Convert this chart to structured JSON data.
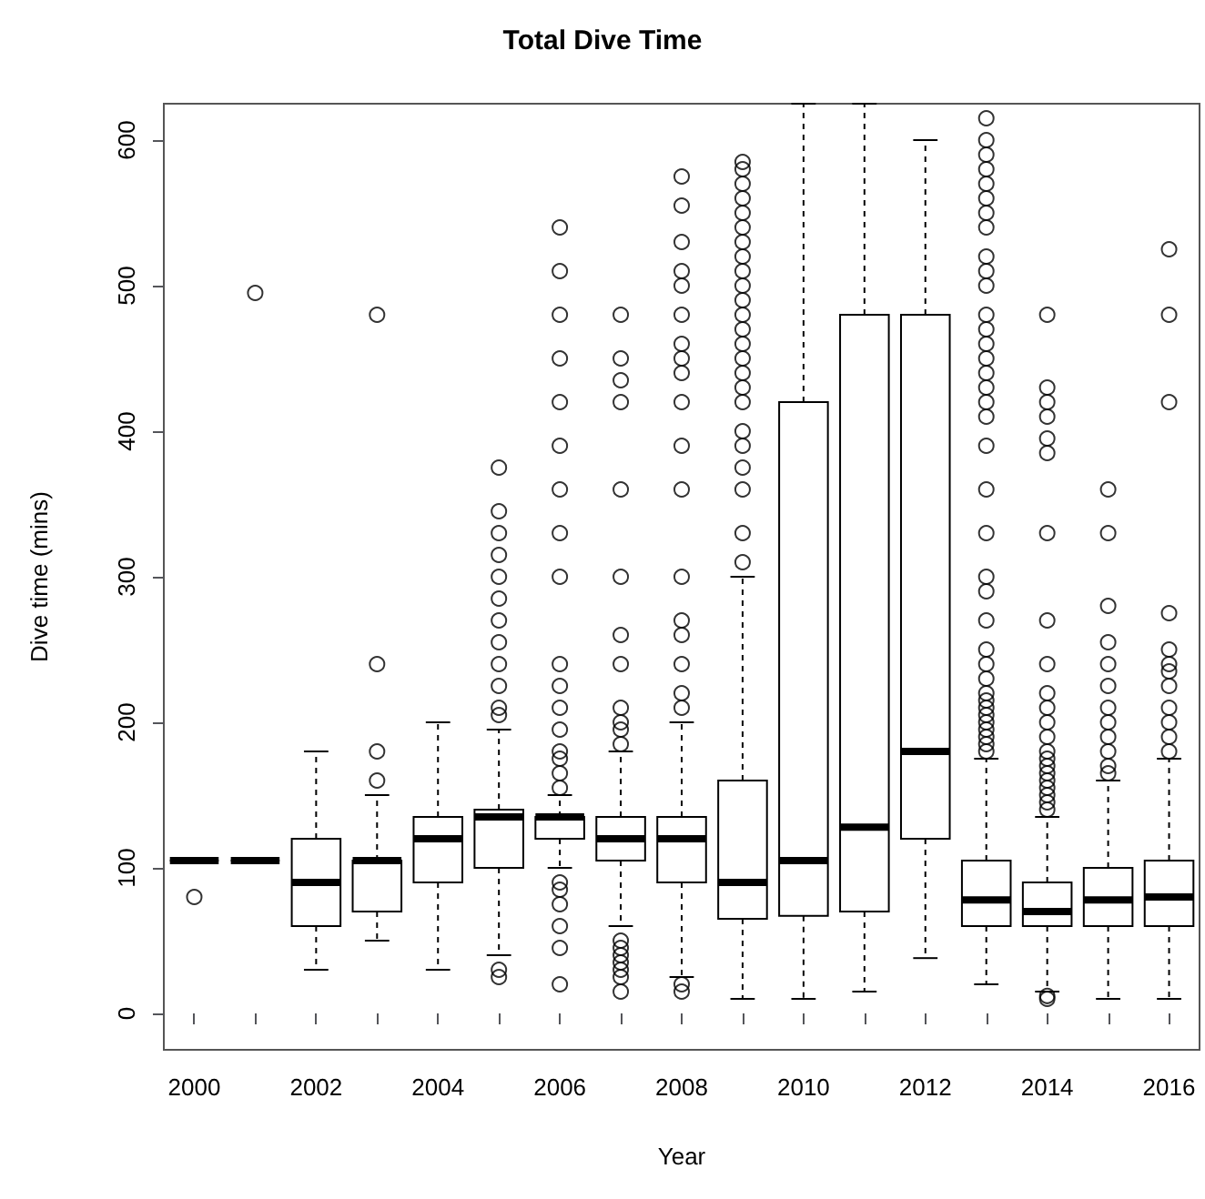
{
  "chart_data": {
    "type": "box",
    "title": "Total Dive Time",
    "xlabel": "Year",
    "ylabel": "Dive time (mins)",
    "categories": [
      "2000",
      null,
      "2002",
      null,
      "2004",
      null,
      "2006",
      null,
      "2008",
      null,
      "2010",
      null,
      "2012",
      null,
      "2014",
      null,
      "2016"
    ],
    "ylim": [
      -25,
      625
    ],
    "yticks": [
      0,
      100,
      200,
      300,
      400,
      500,
      600
    ],
    "grid": false,
    "marker": "circle",
    "boxes": [
      {
        "low": 105,
        "q1": 105,
        "median": 105,
        "q3": 105,
        "high": 105,
        "outliers": [
          80
        ]
      },
      {
        "low": 105,
        "q1": 105,
        "median": 105,
        "q3": 105,
        "high": 105,
        "outliers": [
          495
        ]
      },
      {
        "low": 30,
        "q1": 60,
        "median": 90,
        "q3": 120,
        "high": 180
      },
      {
        "low": 50,
        "q1": 70,
        "median": 105,
        "q3": 105,
        "high": 150,
        "outliers": [
          160,
          180,
          240,
          480
        ]
      },
      {
        "low": 30,
        "q1": 90,
        "median": 120,
        "q3": 135,
        "high": 200
      },
      {
        "low": 40,
        "q1": 100,
        "median": 135,
        "q3": 140,
        "high": 195,
        "outliers": [
          25,
          30,
          205,
          210,
          225,
          240,
          255,
          270,
          285,
          300,
          315,
          330,
          345,
          375
        ]
      },
      {
        "low": 100,
        "q1": 120,
        "median": 135,
        "q3": 135,
        "high": 150,
        "outliers": [
          20,
          45,
          60,
          75,
          85,
          90,
          155,
          165,
          175,
          180,
          195,
          210,
          225,
          240,
          300,
          330,
          360,
          390,
          420,
          450,
          480,
          510,
          540
        ]
      },
      {
        "low": 60,
        "q1": 105,
        "median": 120,
        "q3": 135,
        "high": 180,
        "outliers": [
          15,
          25,
          30,
          35,
          40,
          45,
          50,
          185,
          195,
          200,
          210,
          240,
          260,
          300,
          360,
          420,
          435,
          450,
          480
        ]
      },
      {
        "low": 25,
        "q1": 90,
        "median": 120,
        "q3": 135,
        "high": 200,
        "outliers": [
          15,
          20,
          210,
          220,
          240,
          260,
          270,
          300,
          360,
          390,
          420,
          440,
          450,
          460,
          480,
          500,
          510,
          530,
          555,
          575
        ]
      },
      {
        "low": 10,
        "q1": 65,
        "median": 90,
        "q3": 160,
        "high": 300,
        "outliers": [
          310,
          330,
          360,
          375,
          390,
          400,
          420,
          430,
          440,
          450,
          460,
          470,
          480,
          490,
          500,
          510,
          520,
          530,
          540,
          550,
          560,
          570,
          580,
          585
        ]
      },
      {
        "low": 10,
        "q1": 67,
        "median": 105,
        "q3": 420,
        "high": 625
      },
      {
        "low": 15,
        "q1": 70,
        "median": 128,
        "q3": 480,
        "high": 625
      },
      {
        "low": 38,
        "q1": 120,
        "median": 180,
        "q3": 480,
        "high": 600
      },
      {
        "low": 20,
        "q1": 60,
        "median": 78,
        "q3": 105,
        "high": 175,
        "outliers": [
          180,
          185,
          190,
          195,
          200,
          205,
          210,
          215,
          220,
          230,
          240,
          250,
          270,
          290,
          300,
          330,
          360,
          390,
          410,
          420,
          430,
          440,
          450,
          460,
          470,
          480,
          500,
          510,
          520,
          540,
          550,
          560,
          570,
          580,
          590,
          600,
          615
        ]
      },
      {
        "low": 15,
        "q1": 60,
        "median": 70,
        "q3": 90,
        "high": 135,
        "outliers": [
          10,
          12,
          140,
          145,
          150,
          155,
          160,
          165,
          170,
          175,
          180,
          190,
          200,
          210,
          220,
          240,
          270,
          330,
          385,
          395,
          410,
          420,
          430,
          480
        ]
      },
      {
        "low": 10,
        "q1": 60,
        "median": 78,
        "q3": 100,
        "high": 160,
        "outliers": [
          165,
          170,
          180,
          190,
          200,
          210,
          225,
          240,
          255,
          280,
          330,
          360
        ]
      },
      {
        "low": 10,
        "q1": 60,
        "median": 80,
        "q3": 105,
        "high": 175,
        "outliers": [
          180,
          190,
          200,
          210,
          225,
          235,
          240,
          250,
          275,
          420,
          480,
          525
        ]
      }
    ]
  }
}
